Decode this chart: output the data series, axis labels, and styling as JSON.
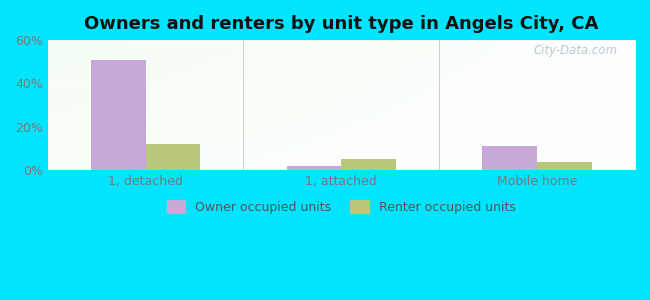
{
  "title": "Owners and renters by unit type in Angels City, CA",
  "categories": [
    "1, detached",
    "1, attached",
    "Mobile home"
  ],
  "owner_values": [
    51,
    2,
    11
  ],
  "renter_values": [
    12,
    5,
    4
  ],
  "owner_color": "#c8a8d8",
  "renter_color": "#b8c878",
  "ylim": [
    0,
    60
  ],
  "yticks": [
    0,
    20,
    40,
    60
  ],
  "ytick_labels": [
    "0%",
    "20%",
    "40%",
    "60%"
  ],
  "bar_width": 0.28,
  "outer_bg": "#00e5ff",
  "legend_owner": "Owner occupied units",
  "legend_renter": "Renter occupied units",
  "title_fontsize": 13,
  "watermark": "City-Data.com"
}
